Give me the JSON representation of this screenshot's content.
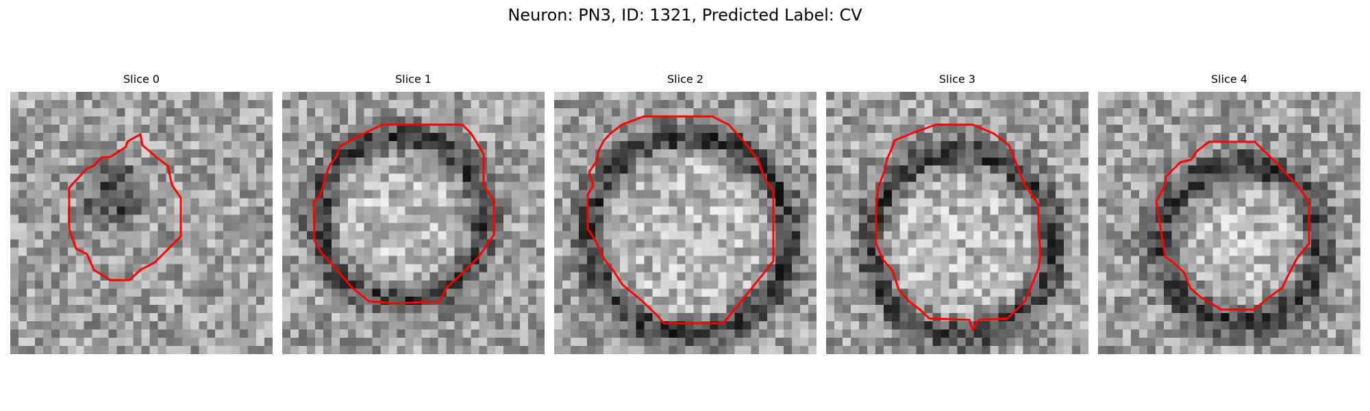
{
  "figure": {
    "title": "Neuron: PN3, ID: 1321, Predicted Label: CV",
    "contour_color": "#ff0000",
    "colormap": "grayscale",
    "panels": [
      {
        "title": "Slice 0"
      },
      {
        "title": "Slice 1"
      },
      {
        "title": "Slice 2"
      },
      {
        "title": "Slice 3"
      },
      {
        "title": "Slice 4"
      }
    ]
  }
}
